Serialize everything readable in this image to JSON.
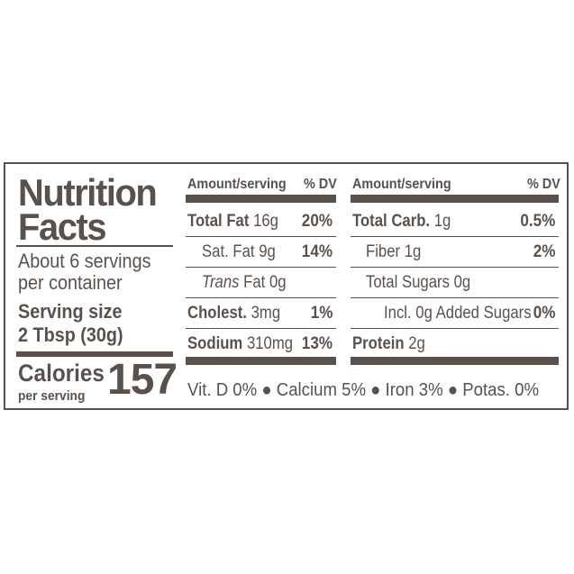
{
  "title": {
    "line1": "Nutrition",
    "line2": "Facts"
  },
  "servings": {
    "line1": "About 6 servings",
    "line2": "per container"
  },
  "serving_size": {
    "label": "Serving size",
    "value": "2 Tbsp (30g)"
  },
  "calories": {
    "label": "Calories",
    "sub": "per serving",
    "value": "157"
  },
  "col1": {
    "header_amount": "Amount/serving",
    "header_dv": "% DV",
    "rows": [
      {
        "name": "Total Fat",
        "amount": "16g",
        "dv": "20%"
      },
      {
        "name": "Sat. Fat",
        "amount": "9g",
        "dv": "14%"
      },
      {
        "name": "Trans",
        "amount": "Fat 0g",
        "dv": ""
      },
      {
        "name": "Cholest.",
        "amount": "3mg",
        "dv": "1%"
      },
      {
        "name": "Sodium",
        "amount": "310mg",
        "dv": "13%"
      }
    ]
  },
  "col2": {
    "header_amount": "Amount/serving",
    "header_dv": "% DV",
    "rows": [
      {
        "name": "Total Carb.",
        "amount": "1g",
        "dv": "0.5%"
      },
      {
        "name": "Fiber",
        "amount": "1g",
        "dv": "2%"
      },
      {
        "name": "Total Sugars",
        "amount": "0g",
        "dv": ""
      },
      {
        "name": "Incl. 0g Added Sugars",
        "amount": "",
        "dv": "0%"
      },
      {
        "name": "Protein",
        "amount": "2g",
        "dv": ""
      }
    ]
  },
  "vitamins": "Vit. D 0% ● Calcium 5% ● Iron 3% ● Potas. 0%",
  "colors": {
    "ink": "#5b514c",
    "background": "#ffffff"
  }
}
